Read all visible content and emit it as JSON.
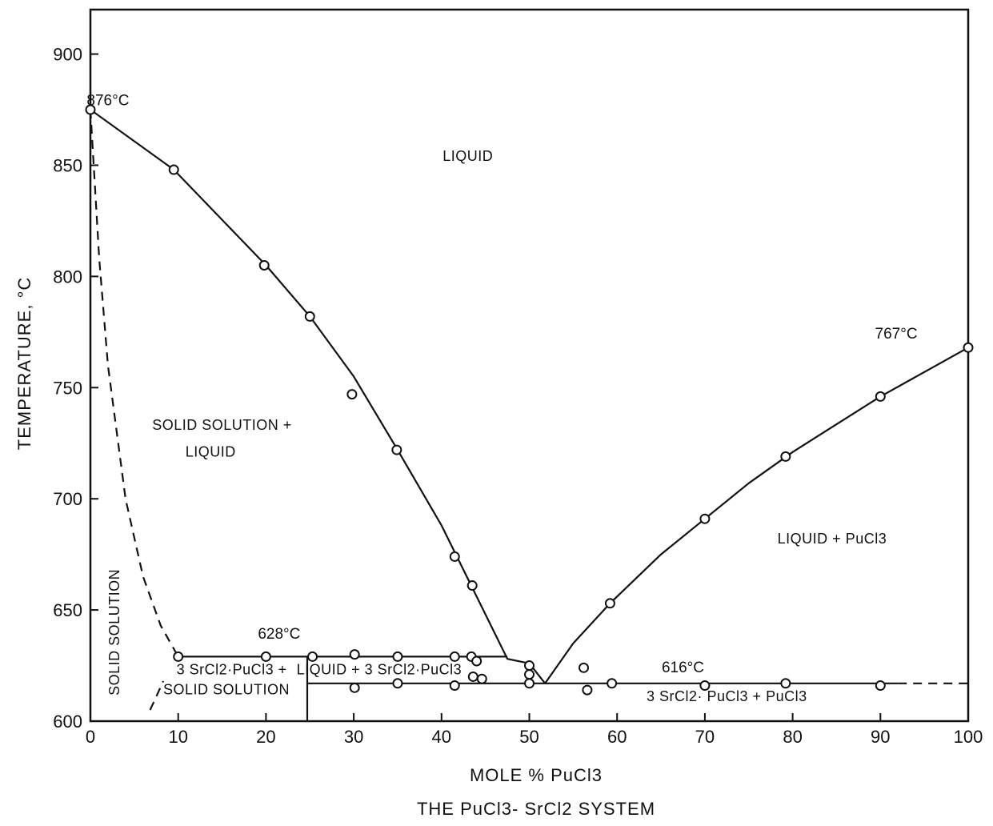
{
  "chart_data": {
    "type": "scatter",
    "title": "THE PuCl3- SrCl2 SYSTEM",
    "xlabel": "MOLE % PuCl3",
    "ylabel": "TEMPERATURE, °C",
    "xlim": [
      0,
      100
    ],
    "ylim": [
      600,
      920
    ],
    "x_ticks": [
      0,
      10,
      20,
      30,
      40,
      50,
      60,
      70,
      80,
      90,
      100
    ],
    "y_ticks": [
      600,
      650,
      700,
      750,
      800,
      850,
      900
    ],
    "grid": false,
    "series": [
      {
        "points": [
          [
            0,
            875
          ],
          [
            9.5,
            848
          ],
          [
            19.8,
            805
          ],
          [
            25,
            782
          ],
          [
            29.8,
            747
          ],
          [
            34.9,
            722
          ],
          [
            41.5,
            674
          ],
          [
            43.5,
            661
          ],
          [
            59.2,
            653
          ],
          [
            70,
            691
          ],
          [
            79.2,
            719
          ],
          [
            90,
            746
          ],
          [
            100,
            768
          ]
        ]
      },
      {
        "points": [
          [
            10,
            629
          ],
          [
            20,
            629
          ],
          [
            25.3,
            629
          ],
          [
            30.1,
            630
          ],
          [
            35,
            629
          ],
          [
            41.5,
            629
          ],
          [
            43.4,
            629
          ],
          [
            44,
            627
          ],
          [
            50,
            625
          ],
          [
            56.2,
            624
          ]
        ]
      },
      {
        "points": [
          [
            30.1,
            615
          ],
          [
            35,
            617
          ],
          [
            41.5,
            616
          ],
          [
            43.6,
            620
          ],
          [
            44.6,
            619
          ],
          [
            50,
            617
          ],
          [
            50,
            621
          ],
          [
            56.6,
            614
          ],
          [
            59.4,
            617
          ],
          [
            70,
            616
          ],
          [
            79.2,
            617
          ],
          [
            90,
            616
          ]
        ]
      }
    ],
    "lines": [
      {
        "style": "solid",
        "points": [
          [
            0,
            875
          ],
          [
            9.5,
            848
          ],
          [
            20,
            805
          ],
          [
            25,
            782
          ],
          [
            30,
            755
          ],
          [
            35,
            722
          ],
          [
            40,
            688
          ],
          [
            45,
            648
          ],
          [
            47.5,
            628
          ],
          [
            50,
            626
          ],
          [
            51.8,
            617
          ]
        ]
      },
      {
        "style": "solid",
        "points": [
          [
            51.8,
            617
          ],
          [
            55,
            635
          ],
          [
            59.2,
            653
          ],
          [
            65,
            675
          ],
          [
            70,
            691
          ],
          [
            75,
            707
          ],
          [
            80,
            721
          ],
          [
            90,
            746
          ],
          [
            100,
            768
          ]
        ]
      },
      {
        "style": "solid",
        "points": [
          [
            10,
            629
          ],
          [
            47.5,
            629
          ]
        ]
      },
      {
        "style": "solid",
        "points": [
          [
            24.7,
            617
          ],
          [
            51.8,
            617
          ],
          [
            92,
            617
          ]
        ]
      },
      {
        "style": "dashed",
        "points": [
          [
            92,
            617
          ],
          [
            100,
            617
          ]
        ]
      },
      {
        "style": "solid",
        "points": [
          [
            24.7,
            629
          ],
          [
            24.7,
            600
          ]
        ]
      },
      {
        "style": "dashed",
        "points": [
          [
            0,
            875
          ],
          [
            1,
            808
          ],
          [
            2,
            760
          ],
          [
            4,
            700
          ],
          [
            6,
            665
          ],
          [
            8,
            643
          ],
          [
            10,
            629
          ]
        ]
      },
      {
        "style": "dashed",
        "points": [
          [
            6.8,
            605
          ],
          [
            8.3,
            618
          ]
        ]
      }
    ],
    "annotations": [
      {
        "text": "876°C",
        "x": 2,
        "y": 877
      },
      {
        "text": "767°C",
        "x": 91.8,
        "y": 772
      },
      {
        "text": "628°C",
        "x": 21.5,
        "y": 637
      },
      {
        "text": "616°C",
        "x": 67.5,
        "y": 622
      },
      {
        "text": "LIQUID",
        "x": 43,
        "y": 852
      },
      {
        "text": "SOLID SOLUTION +",
        "x": 15,
        "y": 731
      },
      {
        "text": "LIQUID",
        "x": 13.7,
        "y": 719
      },
      {
        "text": "LIQUID + PuCl3",
        "x": 84.5,
        "y": 680
      },
      {
        "text": "SOLID SOLUTION",
        "x": 3.3,
        "y": 640
      },
      {
        "text": "3 SrCl2·PuCl3 +",
        "x": 16.1,
        "y": 621
      },
      {
        "text": "SOLID SOLUTION",
        "x": 15.5,
        "y": 612
      },
      {
        "text": "LIQUID + 3 SrCl2·PuCl3",
        "x": 32.9,
        "y": 621
      },
      {
        "text": "3 SrCl2· PuCl3 + PuCl3",
        "x": 72.5,
        "y": 609
      }
    ]
  }
}
